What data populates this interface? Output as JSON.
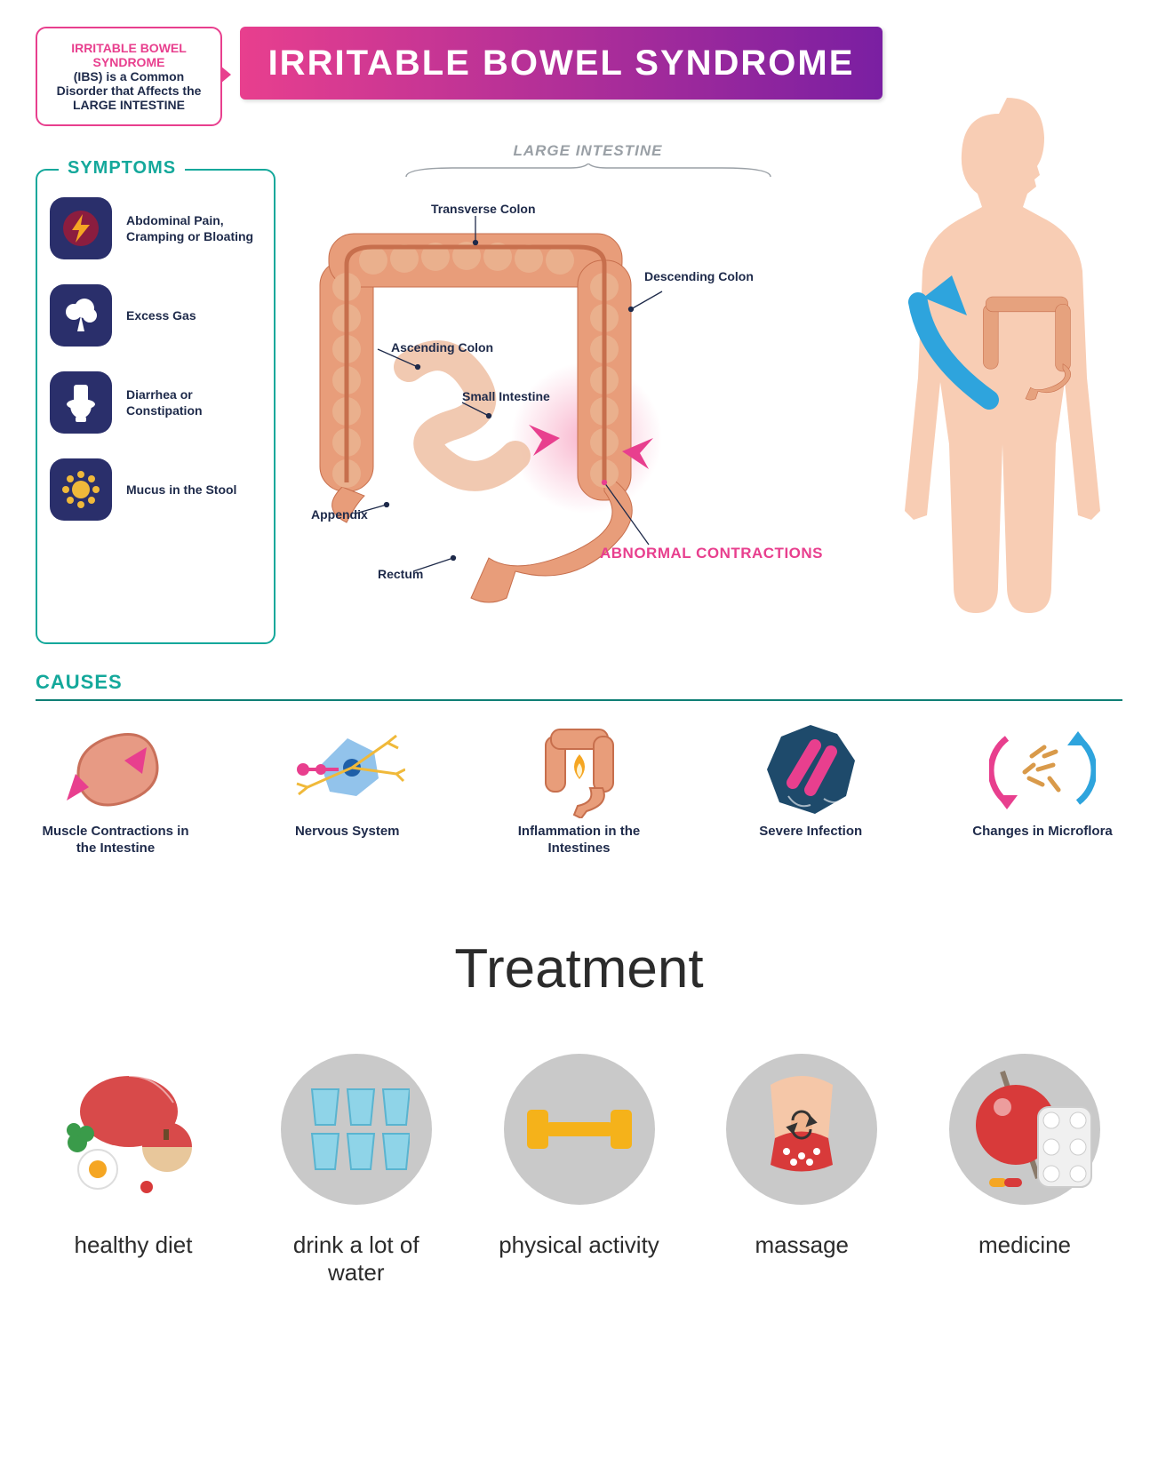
{
  "colors": {
    "pink": "#e83f8e",
    "purple": "#7a1fa2",
    "teal": "#14a89b",
    "tealDark": "#0f7f75",
    "navy": "#1e2a4a",
    "bodyFill": "#f8cdb4",
    "colon": "#e89d7a",
    "colonDark": "#c76f4d",
    "grayCircle": "#c9c9c9",
    "blueArrow": "#2ea4dd",
    "iconBg": "#2a2f6b",
    "yellow": "#f0b93a",
    "gold": "#f5a623"
  },
  "intro": {
    "line1": "IRRITABLE BOWEL SYNDROME",
    "line2": "(IBS) is a Common Disorder that Affects the LARGE INTESTINE",
    "borderColor": "#e83f8e",
    "topColor": "#e83f8e"
  },
  "title": {
    "text": "IRRITABLE BOWEL SYNDROME",
    "gradientFrom": "#e83f8e",
    "gradientTo": "#7a1fa2"
  },
  "diagram": {
    "caption": "LARGE INTESTINE",
    "labels": {
      "transverse": "Transverse Colon",
      "ascending": "Ascending Colon",
      "descending": "Descending Colon",
      "small": "Small Intestine",
      "appendix": "Appendix",
      "rectum": "Rectum"
    },
    "abnormal": "ABNORMAL CONTRACTIONS",
    "abnormalColor": "#e83f8e"
  },
  "symptoms": {
    "title": "SYMPTOMS",
    "borderColor": "#14a89b",
    "titleColor": "#14a89b",
    "items": [
      {
        "label": "Abdominal Pain, Cramping or Bloating",
        "icon": "bolt"
      },
      {
        "label": "Excess Gas",
        "icon": "cloud"
      },
      {
        "label": "Diarrhea or Constipation",
        "icon": "toilet"
      },
      {
        "label": "Mucus in the Stool",
        "icon": "splat"
      }
    ],
    "iconBg": "#2a2f6b",
    "boltColor": "#f5a623",
    "splatColor": "#f0b93a"
  },
  "causes": {
    "title": "CAUSES",
    "titleColor": "#14a89b",
    "ruleColor": "#0f7f75",
    "items": [
      {
        "label": "Muscle Contractions in the Intestine",
        "icon": "muscle"
      },
      {
        "label": "Nervous System",
        "icon": "nervous"
      },
      {
        "label": "Inflammation in the Intestines",
        "icon": "inflame"
      },
      {
        "label": "Severe Infection",
        "icon": "infection"
      },
      {
        "label": "Changes in Microflora",
        "icon": "microflora"
      }
    ]
  },
  "treatment": {
    "title": "Treatment",
    "items": [
      {
        "label": "healthy diet",
        "icon": "diet",
        "bg": "transparent"
      },
      {
        "label": "drink a lot of water",
        "icon": "water",
        "bg": "#c9c9c9"
      },
      {
        "label": "physical activity",
        "icon": "dumbbell",
        "bg": "#c9c9c9"
      },
      {
        "label": "massage",
        "icon": "massage",
        "bg": "#c9c9c9"
      },
      {
        "label": "medicine",
        "icon": "medicine",
        "bg": "#c9c9c9"
      }
    ]
  }
}
